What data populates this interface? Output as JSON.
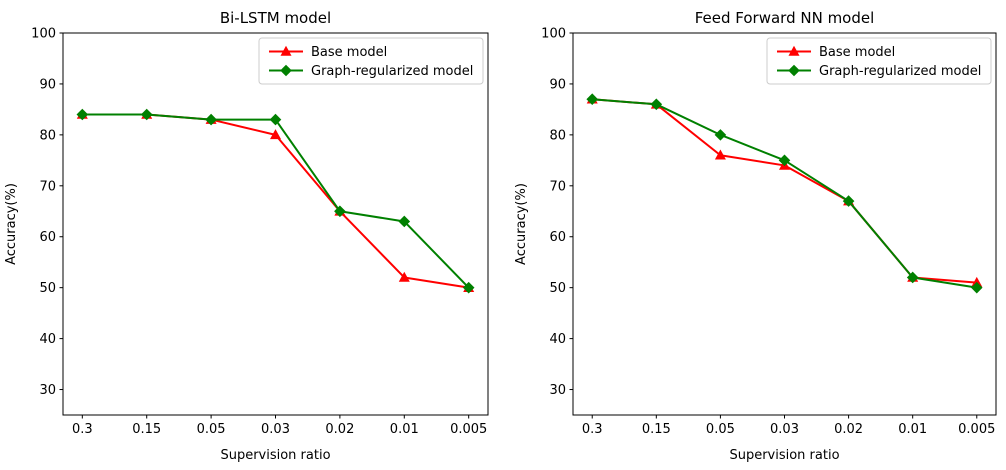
{
  "figure": {
    "background": "#ffffff",
    "axis_color": "#000000",
    "legend_border_color": "#cccccc"
  },
  "chart_data": [
    {
      "type": "line",
      "title": "Bi-LSTM model",
      "xlabel": "Supervision ratio",
      "ylabel": "Accuracy(%)",
      "categories": [
        "0.3",
        "0.15",
        "0.05",
        "0.03",
        "0.02",
        "0.01",
        "0.005"
      ],
      "yticks": [
        30,
        40,
        50,
        60,
        70,
        80,
        90,
        100
      ],
      "ylim": [
        25,
        100
      ],
      "grid": false,
      "legend_position": "upper right",
      "series": [
        {
          "name": "Base model",
          "color": "#ff0000",
          "marker": "triangle-up",
          "values": [
            84,
            84,
            83,
            80,
            65,
            52,
            50
          ]
        },
        {
          "name": "Graph-regularized model",
          "color": "#008000",
          "marker": "diamond",
          "values": [
            84,
            84,
            83,
            83,
            65,
            63,
            50
          ]
        }
      ]
    },
    {
      "type": "line",
      "title": "Feed Forward NN model",
      "xlabel": "Supervision ratio",
      "ylabel": "Accuracy(%)",
      "categories": [
        "0.3",
        "0.15",
        "0.05",
        "0.03",
        "0.02",
        "0.01",
        "0.005"
      ],
      "yticks": [
        30,
        40,
        50,
        60,
        70,
        80,
        90,
        100
      ],
      "ylim": [
        25,
        100
      ],
      "grid": false,
      "legend_position": "upper right",
      "series": [
        {
          "name": "Base model",
          "color": "#ff0000",
          "marker": "triangle-up",
          "values": [
            87,
            86,
            76,
            74,
            67,
            52,
            51
          ]
        },
        {
          "name": "Graph-regularized model",
          "color": "#008000",
          "marker": "diamond",
          "values": [
            87,
            86,
            80,
            75,
            67,
            52,
            50
          ]
        }
      ]
    }
  ]
}
